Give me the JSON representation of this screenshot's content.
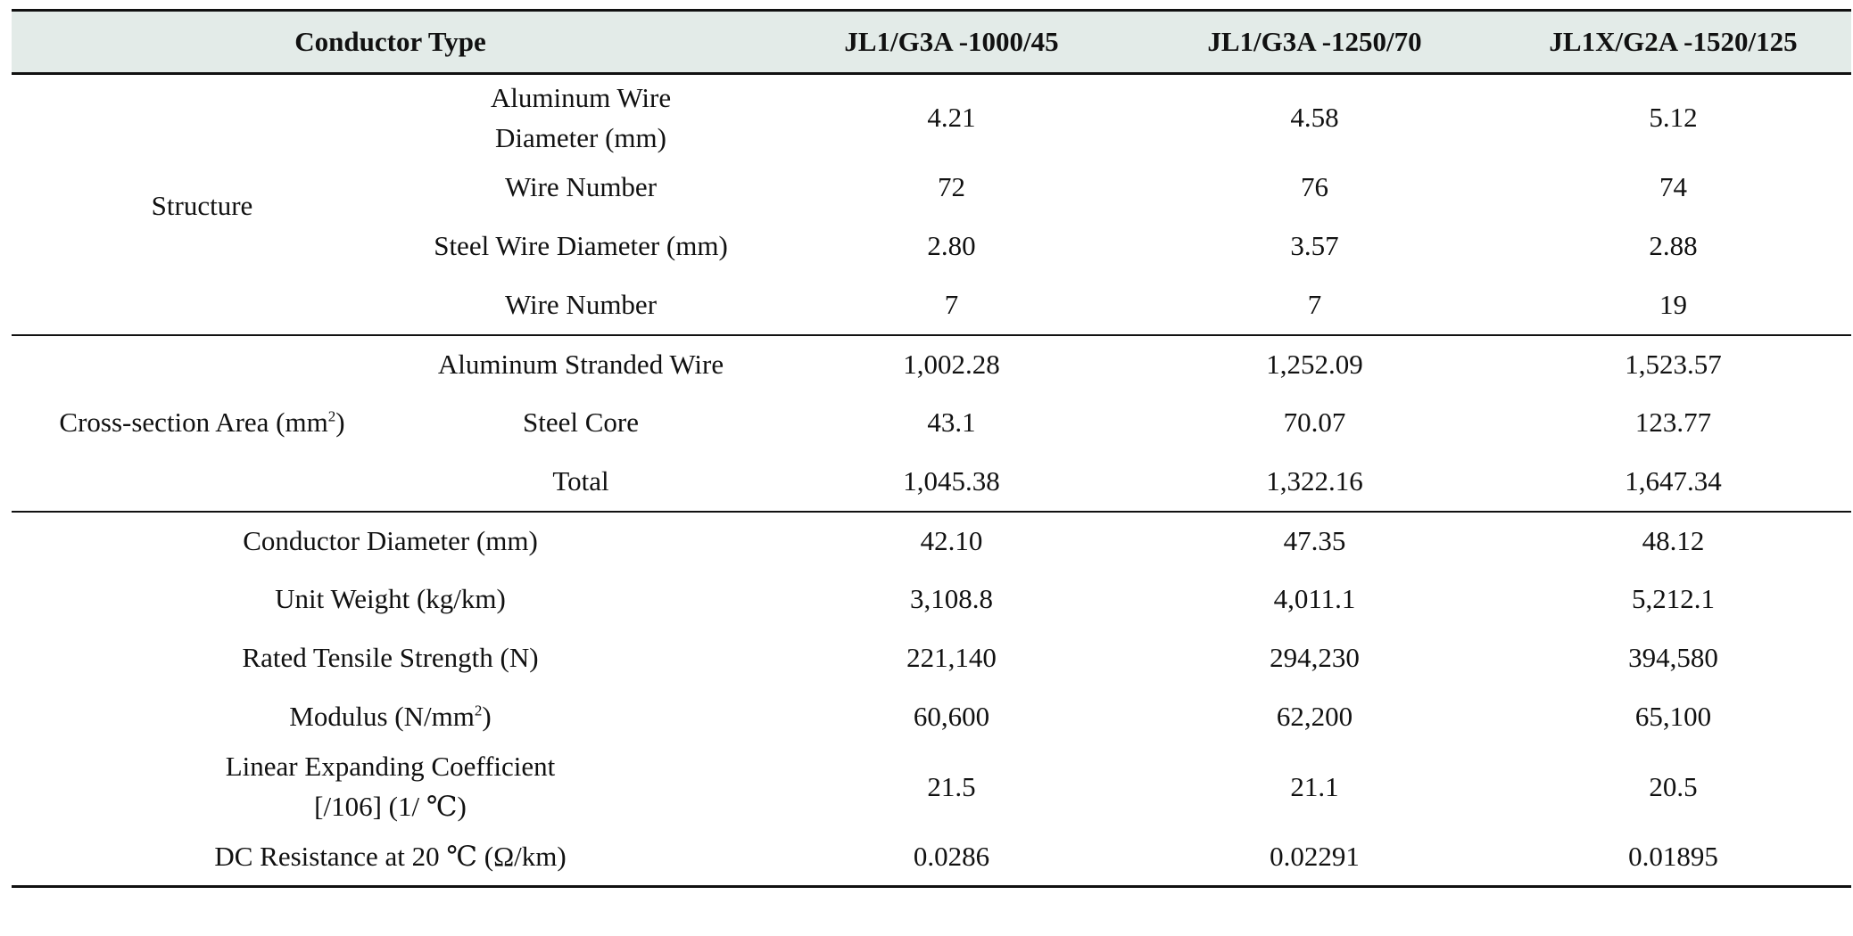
{
  "header": {
    "conductor_type": "Conductor Type",
    "col1": "JL1/G3A -1000/45",
    "col2": "JL1/G3A -1250/70",
    "col3": "JL1X/G2A -1520/125"
  },
  "structure": {
    "group": "Structure",
    "rows": [
      {
        "label": "Aluminum Wire Diameter (mm)",
        "v1": "4.21",
        "v2": "4.58",
        "v3": "5.12"
      },
      {
        "label": "Wire Number",
        "v1": "72",
        "v2": "76",
        "v3": "74"
      },
      {
        "label": "Steel Wire Diameter (mm)",
        "v1": "2.80",
        "v2": "3.57",
        "v3": "2.88"
      },
      {
        "label": "Wire Number",
        "v1": "7",
        "v2": "7",
        "v3": "19"
      }
    ]
  },
  "cross_section": {
    "group": "Cross-section Area (mm",
    "group_sup": "2",
    "group_close": ")",
    "rows": [
      {
        "label": "Aluminum Stranded Wire",
        "v1": "1,002.28",
        "v2": "1,252.09",
        "v3": "1,523.57"
      },
      {
        "label": "Steel Core",
        "v1": "43.1",
        "v2": "70.07",
        "v3": "123.77"
      },
      {
        "label": "Total",
        "v1": "1,045.38",
        "v2": "1,322.16",
        "v3": "1,647.34"
      }
    ]
  },
  "properties": {
    "rows": [
      {
        "label": "Conductor Diameter (mm)",
        "v1": "42.10",
        "v2": "47.35",
        "v3": "48.12"
      },
      {
        "label": "Unit Weight (kg/km)",
        "v1": "3,108.8",
        "v2": "4,011.1",
        "v3": "5,212.1"
      },
      {
        "label": "Rated Tensile Strength (N)",
        "v1": "221,140",
        "v2": "294,230",
        "v3": "394,580"
      },
      {
        "label": "Modulus (N/mm",
        "sup": "2",
        "label_close": ")",
        "v1": "60,600",
        "v2": "62,200",
        "v3": "65,100"
      },
      {
        "label": "Linear Expanding Coefficient [/106] (1/ ℃)",
        "v1": "21.5",
        "v2": "21.1",
        "v3": "20.5"
      },
      {
        "label": "DC Resistance at 20 ℃ (Ω/km)",
        "v1": "0.0286",
        "v2": "0.02291",
        "v3": "0.01895"
      }
    ]
  }
}
